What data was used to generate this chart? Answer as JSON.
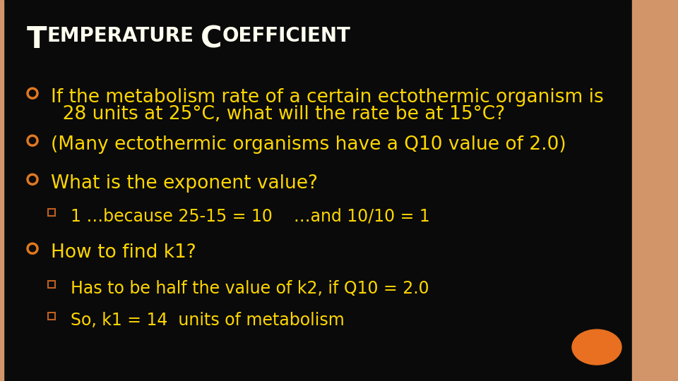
{
  "background_color": "#0a0a0a",
  "border_right_color": "#D2956A",
  "title_color": "#FFFFF0",
  "text_color": "#FFD700",
  "bullet_color": "#E07820",
  "square_color": "#C06020",
  "orange_circle_color": "#E87020",
  "title_big_size": 30,
  "title_small_size": 20,
  "body_fontsize": 19,
  "sub_fontsize": 17,
  "title_parts": [
    [
      "T",
      true
    ],
    [
      "EMPERATURE",
      false
    ],
    [
      " ",
      false
    ],
    [
      "C",
      true
    ],
    [
      "OEFFICIENT",
      false
    ]
  ],
  "lines": [
    {
      "bullet": "open_circle",
      "text": "If the metabolism rate of a certain ectothermic organism is",
      "text2": "  28 units at 25°C, what will the rate be at 15°C?",
      "indent": 0,
      "big": true
    },
    {
      "bullet": "open_circle",
      "text": "(Many ectothermic organisms have a Q10 value of 2.0)",
      "text2": null,
      "indent": 0,
      "big": true
    },
    {
      "bullet": "open_circle",
      "text": "What is the exponent value?",
      "text2": null,
      "indent": 0,
      "big": true
    },
    {
      "bullet": "square",
      "text": "1 …because 25-15 = 10    …and 10/10 = 1",
      "text2": null,
      "indent": 1,
      "big": false
    },
    {
      "bullet": "open_circle",
      "text": "How to find k1?",
      "text2": null,
      "indent": 0,
      "big": true
    },
    {
      "bullet": "square",
      "text": "Has to be half the value of k2, if Q10 = 2.0",
      "text2": null,
      "indent": 1,
      "big": false
    },
    {
      "bullet": "square",
      "text": "So, k1 = 14  units of metabolism",
      "text2": null,
      "indent": 1,
      "big": false
    }
  ]
}
